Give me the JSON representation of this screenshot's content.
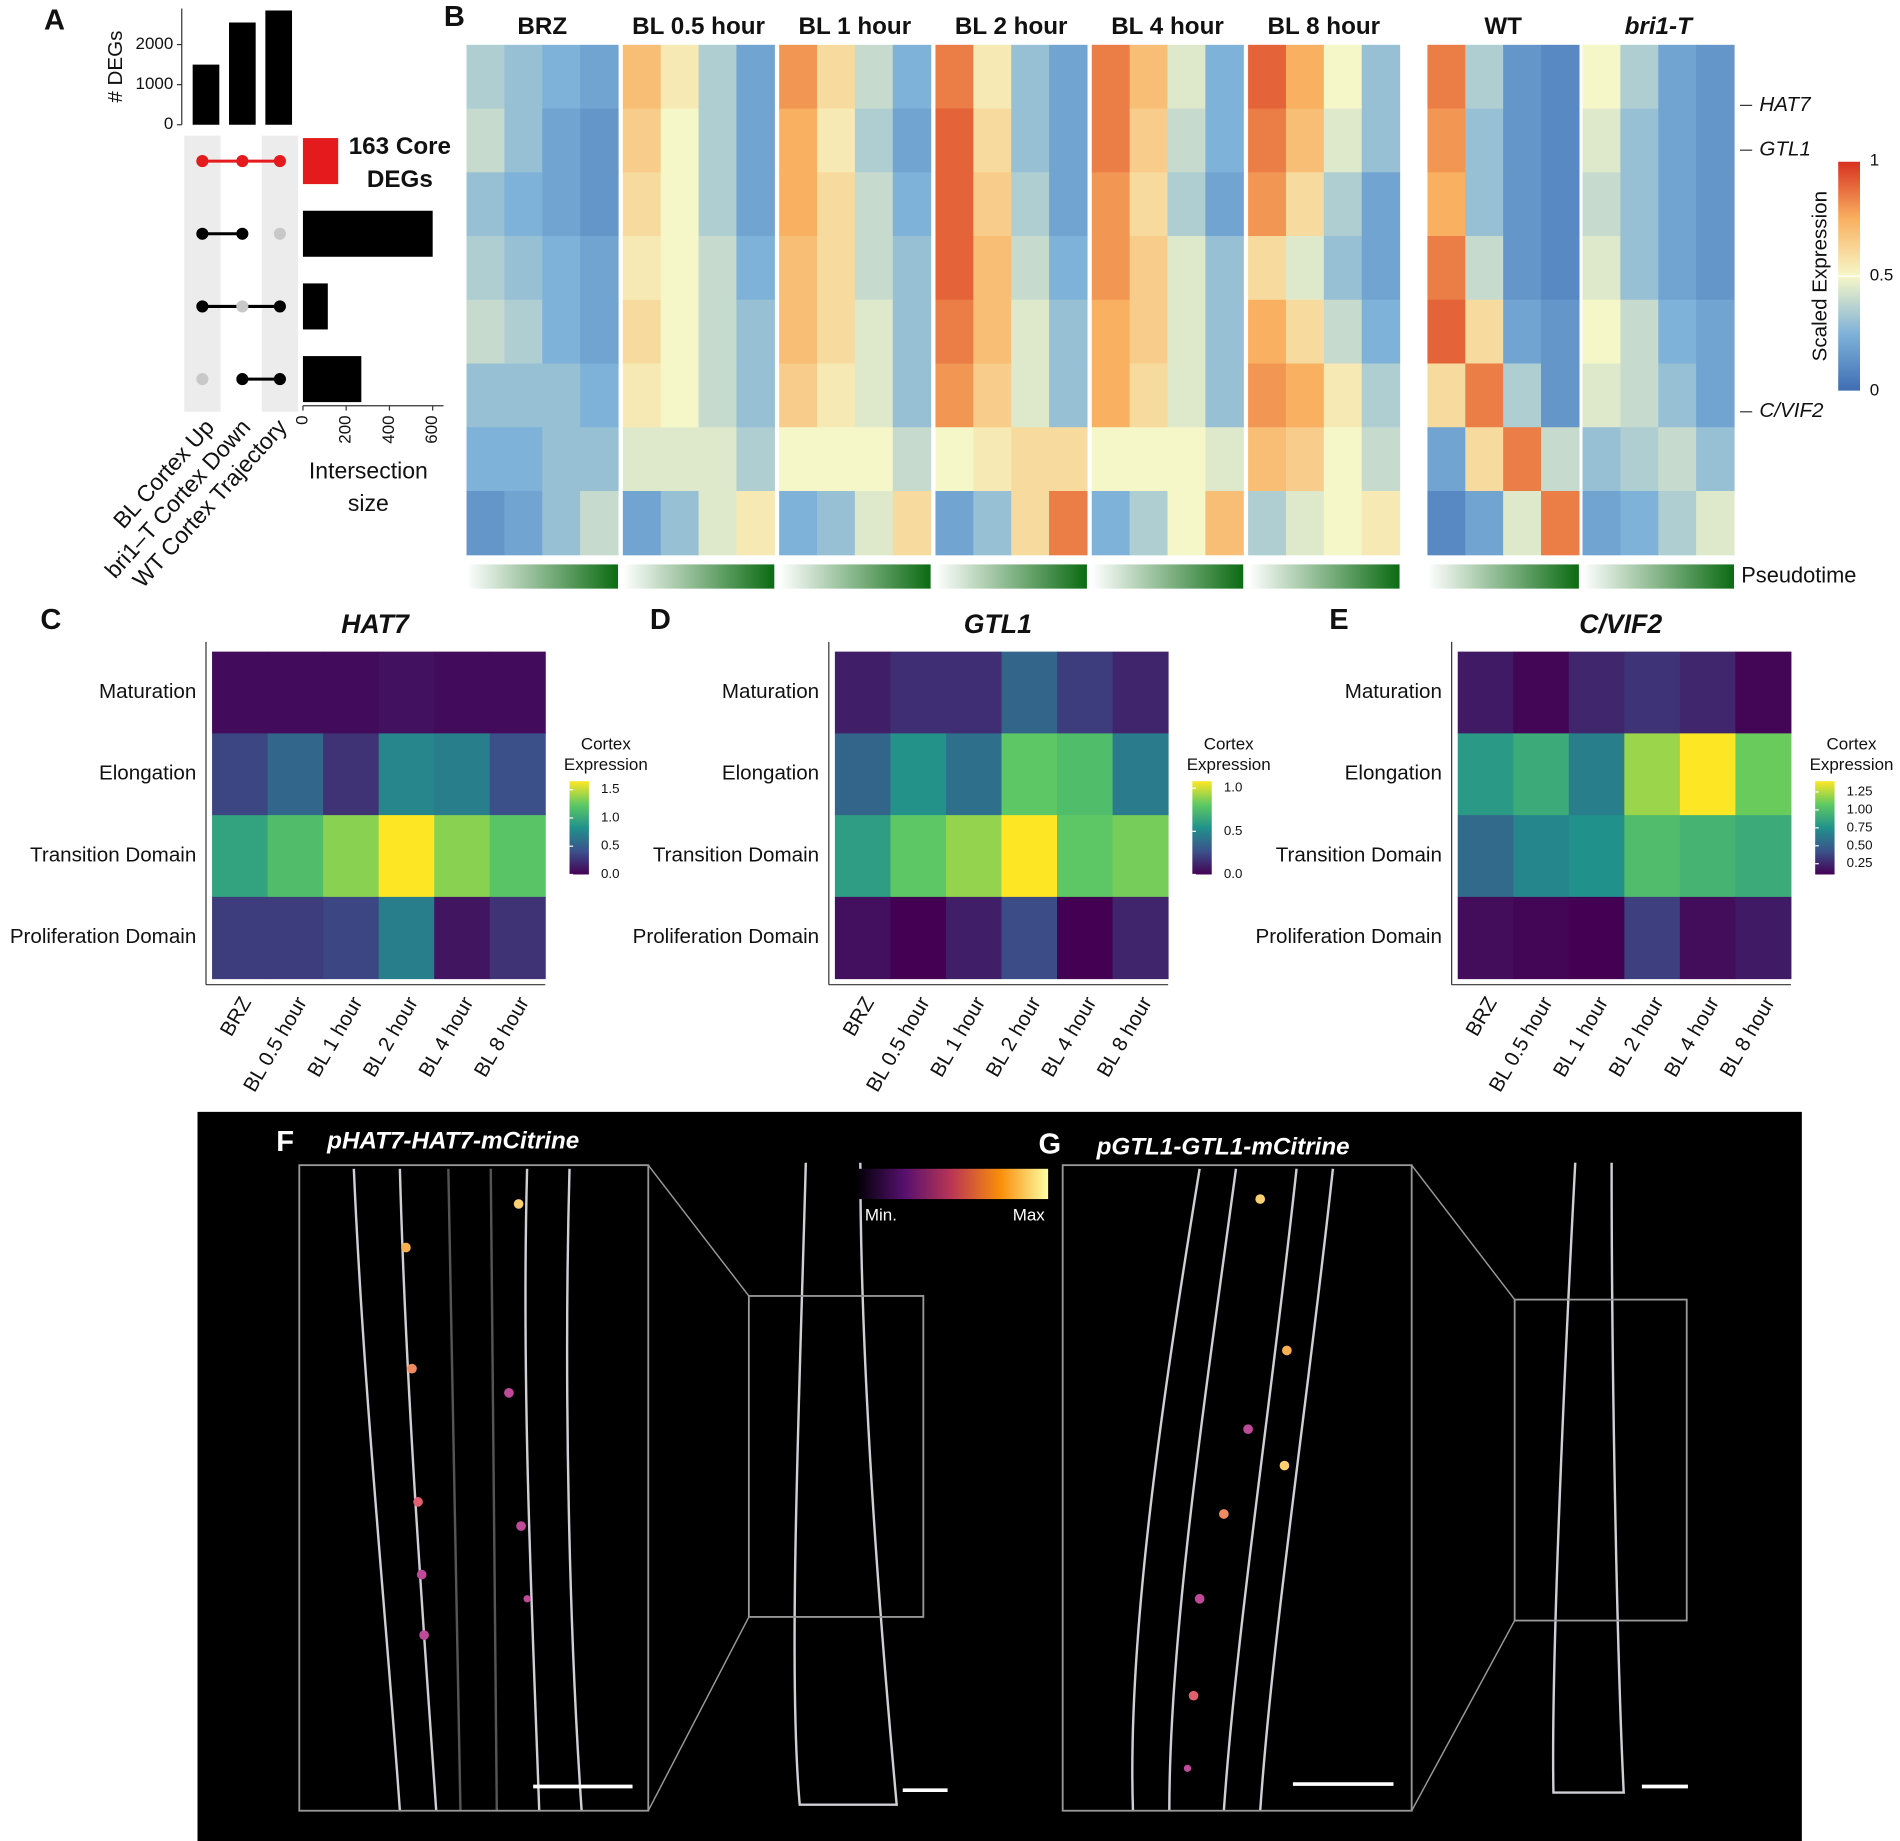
{
  "chart_data": [
    {
      "type": "bar",
      "panel": "A",
      "ylabel": "# DEGs",
      "categories": [
        "BL Cortex Up",
        "bri1–T Cortex Down",
        "WT Cortex Trajectory"
      ],
      "values": [
        1500,
        2550,
        2850
      ],
      "color": "#000000",
      "ylim": [
        0,
        2900
      ],
      "yticks": [
        0,
        1000,
        2000
      ]
    },
    {
      "type": "bar",
      "orientation": "horizontal",
      "values": [
        163,
        600,
        115,
        270
      ],
      "colors": [
        "#e41a1c",
        "#000000",
        "#000000",
        "#000000"
      ],
      "sets": [
        [
          1,
          1,
          1
        ],
        [
          1,
          1,
          0
        ],
        [
          1,
          0,
          1
        ],
        [
          0,
          1,
          1
        ]
      ],
      "annotation": [
        "163 Core",
        "DEGs"
      ],
      "xlabel": [
        "Intersection",
        "size"
      ],
      "xlim": [
        0,
        650
      ],
      "xticks": [
        0,
        200,
        400,
        600
      ]
    },
    {
      "type": "heatmap",
      "panel": "B",
      "colormap": [
        "#3e6db3",
        "#7fb2d8",
        "#f6f7c8",
        "#f9b060",
        "#d7301f"
      ],
      "clim": [
        0,
        1
      ],
      "colorbar_ticks": [
        0,
        0.5,
        1
      ],
      "colorbar_label": "Scaled Expression",
      "pseudotime_label": "Pseudotime",
      "genes": [
        "HAT7",
        "GTL1",
        "C/VIF2"
      ],
      "panels": [
        {
          "name": "BRZ",
          "values": [
            [
              0.35,
              0.3,
              0.25,
              0.2
            ],
            [
              0.4,
              0.3,
              0.2,
              0.15
            ],
            [
              0.3,
              0.25,
              0.2,
              0.15
            ],
            [
              0.35,
              0.3,
              0.25,
              0.2
            ],
            [
              0.4,
              0.35,
              0.25,
              0.2
            ],
            [
              0.3,
              0.3,
              0.3,
              0.25
            ],
            [
              0.25,
              0.25,
              0.3,
              0.3
            ],
            [
              0.15,
              0.2,
              0.3,
              0.4
            ]
          ]
        },
        {
          "name": "BL 0.5 hour",
          "values": [
            [
              0.7,
              0.55,
              0.35,
              0.2
            ],
            [
              0.65,
              0.5,
              0.35,
              0.2
            ],
            [
              0.6,
              0.5,
              0.35,
              0.2
            ],
            [
              0.55,
              0.5,
              0.4,
              0.25
            ],
            [
              0.6,
              0.5,
              0.4,
              0.3
            ],
            [
              0.55,
              0.5,
              0.4,
              0.3
            ],
            [
              0.45,
              0.45,
              0.45,
              0.35
            ],
            [
              0.2,
              0.3,
              0.45,
              0.55
            ]
          ]
        },
        {
          "name": "BL 1 hour",
          "values": [
            [
              0.8,
              0.6,
              0.4,
              0.25
            ],
            [
              0.75,
              0.55,
              0.35,
              0.2
            ],
            [
              0.75,
              0.6,
              0.4,
              0.25
            ],
            [
              0.7,
              0.6,
              0.4,
              0.3
            ],
            [
              0.7,
              0.6,
              0.45,
              0.3
            ],
            [
              0.65,
              0.55,
              0.45,
              0.3
            ],
            [
              0.5,
              0.5,
              0.5,
              0.4
            ],
            [
              0.25,
              0.3,
              0.45,
              0.6
            ]
          ]
        },
        {
          "name": "BL 2 hour",
          "values": [
            [
              0.85,
              0.55,
              0.3,
              0.2
            ],
            [
              0.9,
              0.6,
              0.3,
              0.2
            ],
            [
              0.9,
              0.65,
              0.35,
              0.2
            ],
            [
              0.9,
              0.7,
              0.4,
              0.25
            ],
            [
              0.85,
              0.7,
              0.45,
              0.3
            ],
            [
              0.8,
              0.65,
              0.45,
              0.3
            ],
            [
              0.5,
              0.55,
              0.6,
              0.6
            ],
            [
              0.2,
              0.3,
              0.6,
              0.85
            ]
          ]
        },
        {
          "name": "BL 4 hour",
          "values": [
            [
              0.85,
              0.7,
              0.45,
              0.25
            ],
            [
              0.85,
              0.65,
              0.4,
              0.25
            ],
            [
              0.8,
              0.6,
              0.35,
              0.2
            ],
            [
              0.8,
              0.65,
              0.45,
              0.3
            ],
            [
              0.75,
              0.65,
              0.45,
              0.3
            ],
            [
              0.75,
              0.6,
              0.45,
              0.3
            ],
            [
              0.5,
              0.5,
              0.5,
              0.45
            ],
            [
              0.25,
              0.35,
              0.5,
              0.7
            ]
          ]
        },
        {
          "name": "BL 8 hour",
          "values": [
            [
              0.9,
              0.75,
              0.5,
              0.3
            ],
            [
              0.85,
              0.7,
              0.45,
              0.3
            ],
            [
              0.8,
              0.6,
              0.35,
              0.2
            ],
            [
              0.6,
              0.45,
              0.3,
              0.2
            ],
            [
              0.75,
              0.6,
              0.4,
              0.25
            ],
            [
              0.8,
              0.75,
              0.55,
              0.35
            ],
            [
              0.7,
              0.65,
              0.5,
              0.4
            ],
            [
              0.35,
              0.45,
              0.5,
              0.55
            ]
          ]
        },
        {
          "name": "WT",
          "values": [
            [
              0.85,
              0.35,
              0.15,
              0.1
            ],
            [
              0.8,
              0.3,
              0.15,
              0.1
            ],
            [
              0.75,
              0.3,
              0.15,
              0.1
            ],
            [
              0.85,
              0.4,
              0.15,
              0.1
            ],
            [
              0.9,
              0.6,
              0.2,
              0.15
            ],
            [
              0.6,
              0.85,
              0.35,
              0.15
            ],
            [
              0.2,
              0.6,
              0.85,
              0.4
            ],
            [
              0.1,
              0.2,
              0.45,
              0.85
            ]
          ]
        },
        {
          "name": "bri1-T",
          "values": [
            [
              0.5,
              0.35,
              0.2,
              0.15
            ],
            [
              0.45,
              0.3,
              0.2,
              0.15
            ],
            [
              0.4,
              0.3,
              0.2,
              0.15
            ],
            [
              0.45,
              0.3,
              0.2,
              0.15
            ],
            [
              0.5,
              0.4,
              0.25,
              0.2
            ],
            [
              0.45,
              0.4,
              0.3,
              0.2
            ],
            [
              0.3,
              0.35,
              0.4,
              0.3
            ],
            [
              0.2,
              0.25,
              0.35,
              0.45
            ]
          ]
        }
      ]
    },
    {
      "type": "heatmap",
      "panel": "C",
      "title": "HAT7",
      "rows": [
        "Maturation",
        "Elongation",
        "Transition Domain",
        "Proliferation Domain"
      ],
      "columns": [
        "BRZ",
        "BL 0.5 hour",
        "BL 1 hour",
        "BL 2 hour",
        "BL 4 hour",
        "BL 8 hour"
      ],
      "values": [
        [
          0.05,
          0.05,
          0.05,
          0.08,
          0.05,
          0.05
        ],
        [
          0.35,
          0.55,
          0.25,
          0.75,
          0.7,
          0.4
        ],
        [
          0.95,
          1.15,
          1.35,
          1.65,
          1.35,
          1.2
        ],
        [
          0.3,
          0.3,
          0.35,
          0.7,
          0.1,
          0.25
        ]
      ],
      "colormap": [
        "#440154",
        "#3b528b",
        "#21918c",
        "#5ec962",
        "#fde725"
      ],
      "clim": [
        0,
        1.65
      ],
      "legend_title": [
        "Cortex",
        "Expression"
      ],
      "colorbar_ticks": [
        {
          "value": 0,
          "label": "0.0"
        },
        {
          "value": 0.5,
          "label": "0.5"
        },
        {
          "value": 1,
          "label": "1.0"
        },
        {
          "value": 1.5,
          "label": "1.5"
        }
      ]
    },
    {
      "type": "heatmap",
      "panel": "D",
      "title": "GTL1",
      "rows": [
        "Maturation",
        "Elongation",
        "Transition Domain",
        "Proliferation Domain"
      ],
      "columns": [
        "BRZ",
        "BL 0.5 hour",
        "BL 1 hour",
        "BL 2 hour",
        "BL 4 hour",
        "BL 8 hour"
      ],
      "values": [
        [
          0.1,
          0.15,
          0.15,
          0.35,
          0.2,
          0.12
        ],
        [
          0.35,
          0.55,
          0.4,
          0.8,
          0.75,
          0.45
        ],
        [
          0.6,
          0.8,
          0.9,
          1.08,
          0.8,
          0.85
        ],
        [
          0.05,
          0,
          0.1,
          0.25,
          0,
          0.12
        ]
      ],
      "colormap": [
        "#440154",
        "#3b528b",
        "#21918c",
        "#5ec962",
        "#fde725"
      ],
      "clim": [
        0,
        1.08
      ],
      "legend_title": [
        "Cortex",
        "Expression"
      ],
      "colorbar_ticks": [
        {
          "value": 0,
          "label": "0.0"
        },
        {
          "value": 0.5,
          "label": "0.5"
        },
        {
          "value": 1,
          "label": "1.0"
        }
      ]
    },
    {
      "type": "heatmap",
      "panel": "E",
      "title": "C/VIF2",
      "rows": [
        "Maturation",
        "Elongation",
        "Transition Domain",
        "Proliferation Domain"
      ],
      "columns": [
        "BRZ",
        "BL 0.5 hour",
        "BL 1 hour",
        "BL 2 hour",
        "BL 4 hour",
        "BL 8 hour"
      ],
      "values": [
        [
          0.2,
          0.12,
          0.25,
          0.3,
          0.25,
          0.12
        ],
        [
          0.8,
          0.9,
          0.65,
          1.2,
          1.4,
          1.1
        ],
        [
          0.55,
          0.7,
          0.75,
          1,
          0.95,
          0.9
        ],
        [
          0.15,
          0.12,
          0.1,
          0.35,
          0.15,
          0.2
        ]
      ],
      "colormap": [
        "#440154",
        "#3b528b",
        "#21918c",
        "#5ec962",
        "#fde725"
      ],
      "clim": [
        0.1,
        1.4
      ],
      "legend_title": [
        "Cortex",
        "Expression"
      ],
      "colorbar_ticks": [
        0.25,
        {
          "value": 0.5,
          "label": "0.50"
        },
        0.75,
        {
          "value": 1,
          "label": "1.00"
        },
        1.25
      ]
    }
  ],
  "images": [
    {
      "panel": "F",
      "title": "pHAT7-HAT7-mCitrine"
    },
    {
      "panel": "G",
      "title": "pGTL1-GTL1-mCitrine"
    }
  ],
  "image_colorbar": {
    "min_label": "Min.",
    "max_label": "Max"
  }
}
